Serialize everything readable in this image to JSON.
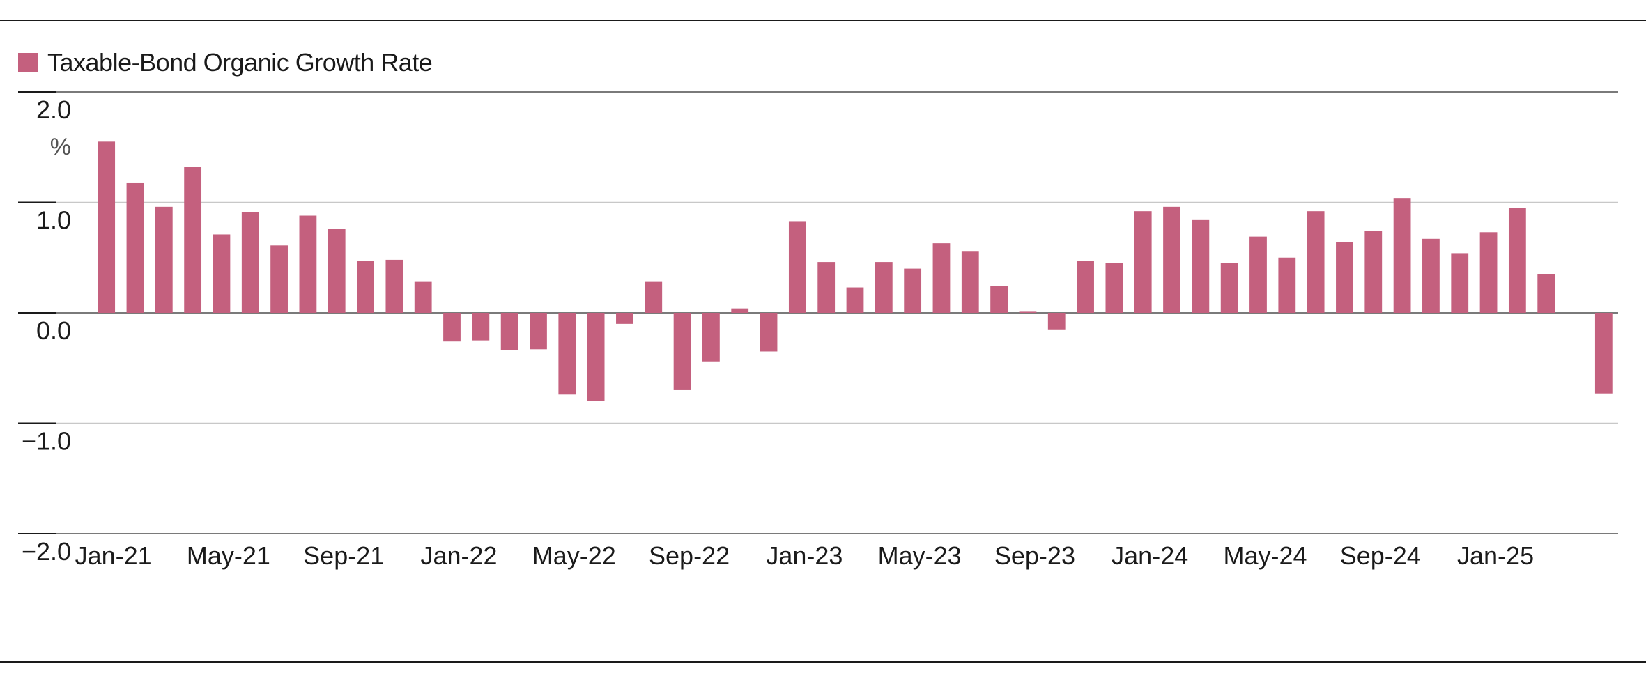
{
  "colors": {
    "bar": "#c4607e",
    "grid": "#c8c8c8",
    "rule": "#1a1a1a",
    "text": "#1a1a1a"
  },
  "chart_data": {
    "type": "bar",
    "title": "",
    "xlabel": "",
    "ylabel": "",
    "unit_label": "%",
    "ylim": [
      -2,
      2
    ],
    "yticks": [
      2,
      1,
      0,
      -1,
      -2
    ],
    "ytick_labels": [
      "2.0",
      "1.0",
      "0.0",
      "−1.0",
      "−2.0"
    ],
    "grid": true,
    "legend": {
      "position": "top-left",
      "entries": [
        "Taxable-Bond Organic Growth Rate"
      ]
    },
    "categories": [
      "Jan-21",
      "Feb-21",
      "Mar-21",
      "Apr-21",
      "May-21",
      "Jun-21",
      "Jul-21",
      "Aug-21",
      "Sep-21",
      "Oct-21",
      "Nov-21",
      "Dec-21",
      "Jan-22",
      "Feb-22",
      "Mar-22",
      "Apr-22",
      "May-22",
      "Jun-22",
      "Jul-22",
      "Aug-22",
      "Sep-22",
      "Oct-22",
      "Nov-22",
      "Dec-22",
      "Jan-23",
      "Feb-23",
      "Mar-23",
      "Apr-23",
      "May-23",
      "Jun-23",
      "Jul-23",
      "Aug-23",
      "Sep-23",
      "Oct-23",
      "Nov-23",
      "Dec-23",
      "Jan-24",
      "Feb-24",
      "Mar-24",
      "Apr-24",
      "May-24",
      "Jun-24",
      "Jul-24",
      "Aug-24",
      "Sep-24",
      "Oct-24",
      "Nov-24",
      "Dec-24",
      "Jan-25",
      "Feb-25",
      "Mar-25",
      "Apr-25",
      "May-25"
    ],
    "tick_labels": [
      "Jan-21",
      "May-21",
      "Sep-21",
      "Jan-22",
      "May-22",
      "Sep-22",
      "Jan-23",
      "May-23",
      "Sep-23",
      "Jan-24",
      "May-24",
      "Sep-24",
      "Jan-25"
    ],
    "series": [
      {
        "name": "Taxable-Bond Organic Growth Rate",
        "values": [
          1.55,
          1.18,
          0.96,
          1.32,
          0.71,
          0.91,
          0.61,
          0.88,
          0.76,
          0.47,
          0.48,
          0.28,
          -0.26,
          -0.25,
          -0.34,
          -0.33,
          -0.74,
          -0.8,
          -0.1,
          0.28,
          -0.7,
          -0.44,
          0.04,
          -0.35,
          0.83,
          0.46,
          0.23,
          0.46,
          0.4,
          0.63,
          0.56,
          0.24,
          0.01,
          -0.15,
          0.47,
          0.45,
          0.92,
          0.96,
          0.84,
          0.45,
          0.69,
          0.5,
          0.92,
          0.64,
          0.74,
          1.04,
          0.67,
          0.54,
          0.73,
          0.95,
          0.35,
          0.0,
          -0.73
        ]
      }
    ]
  }
}
